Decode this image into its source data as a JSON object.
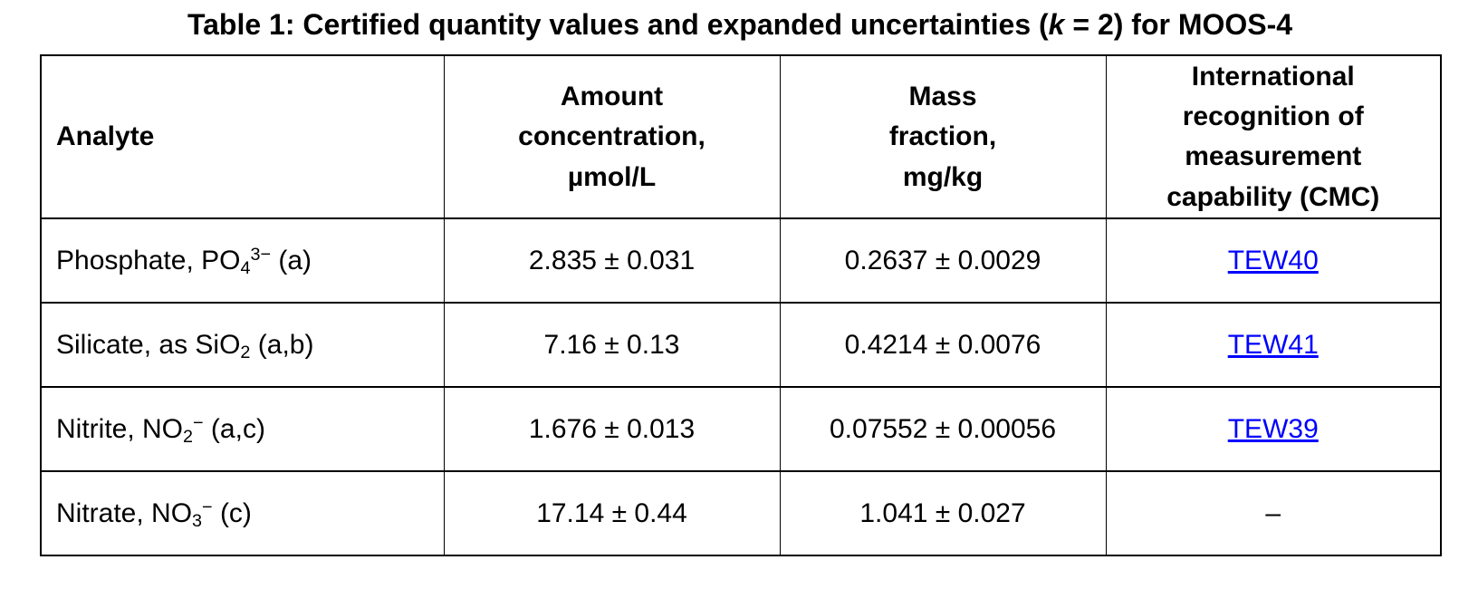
{
  "colors": {
    "text": "#000000",
    "link": "#0000ff",
    "border": "#000000",
    "background": "#ffffff"
  },
  "title": {
    "segments": [
      {
        "t": "Table 1: Certified quantity values and expanded uncertainties ("
      },
      {
        "t": "k",
        "style": "italic"
      },
      {
        "t": " = 2) for MOOS-4"
      }
    ]
  },
  "table": {
    "headers": [
      "Analyte",
      "Amount\nconcentration,\nµmol/L",
      "Mass\nfraction,\nmg/kg",
      "International\nrecognition of\nmeasurement\ncapability (CMC)"
    ],
    "rows": [
      {
        "analyte": [
          {
            "t": "Phosphate, PO"
          },
          {
            "t": "4",
            "style": "sub"
          },
          {
            "t": "3−",
            "style": "sup"
          },
          {
            "t": " (a)"
          }
        ],
        "amount_concentration": "2.835 ± 0.031",
        "mass_fraction": "0.2637 ± 0.0029",
        "cmc": {
          "label": "TEW40",
          "link": true
        }
      },
      {
        "analyte": [
          {
            "t": "Silicate, as SiO"
          },
          {
            "t": "2",
            "style": "sub"
          },
          {
            "t": " (a,b)"
          }
        ],
        "amount_concentration": "7.16 ± 0.13",
        "mass_fraction": "0.4214 ± 0.0076",
        "cmc": {
          "label": "TEW41",
          "link": true
        }
      },
      {
        "analyte": [
          {
            "t": "Nitrite, NO"
          },
          {
            "t": "2",
            "style": "sub"
          },
          {
            "t": "−",
            "style": "sup"
          },
          {
            "t": " (a,c)"
          }
        ],
        "amount_concentration": "1.676 ± 0.013",
        "mass_fraction": "0.07552 ± 0.00056",
        "cmc": {
          "label": "TEW39",
          "link": true
        }
      },
      {
        "analyte": [
          {
            "t": "Nitrate, NO"
          },
          {
            "t": "3",
            "style": "sub"
          },
          {
            "t": "−",
            "style": "sup"
          },
          {
            "t": " (c)"
          }
        ],
        "amount_concentration": "17.14 ± 0.44",
        "mass_fraction": "1.041 ± 0.027",
        "cmc": {
          "label": "–",
          "link": false
        }
      }
    ]
  }
}
